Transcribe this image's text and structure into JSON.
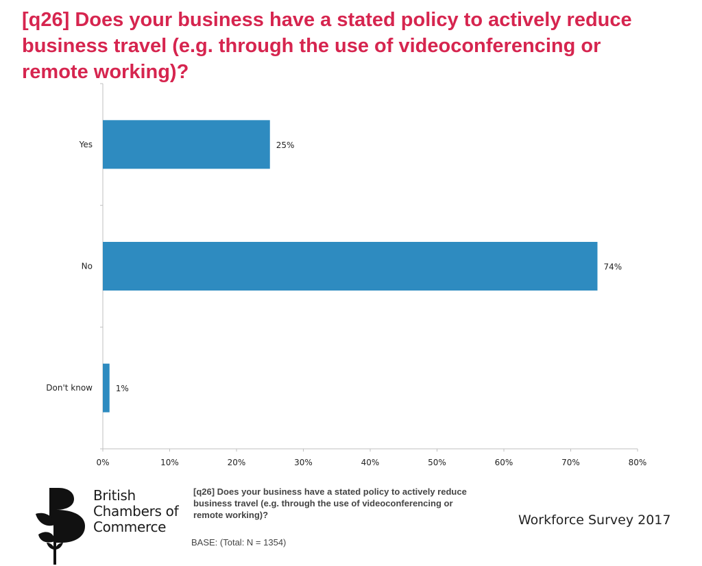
{
  "title": "[q26] Does your business have a stated policy to actively reduce business travel (e.g. through the use of videoconferencing or remote working)?",
  "chart_data": {
    "type": "bar",
    "orientation": "horizontal",
    "categories": [
      "Yes",
      "No",
      "Don't know"
    ],
    "values": [
      25,
      74,
      1
    ],
    "value_labels": [
      "25%",
      "74%",
      "1%"
    ],
    "xlim": [
      0,
      80
    ],
    "x_ticks": [
      0,
      10,
      20,
      30,
      40,
      50,
      60,
      70,
      80
    ],
    "x_tick_labels": [
      "0%",
      "10%",
      "20%",
      "30%",
      "40%",
      "50%",
      "60%",
      "70%",
      "80%"
    ],
    "bar_color": "#2e8bc0",
    "grid": false,
    "legend": "none"
  },
  "footer": {
    "question": "[q26] Does your business have a stated policy to actively reduce business travel (e.g. through the use of videoconferencing or remote working)?",
    "base": "BASE: (Total: N = 1354)",
    "survey": "Workforce Survey 2017"
  },
  "logo": {
    "lines": [
      "British",
      "Chambers of",
      "Commerce"
    ]
  }
}
